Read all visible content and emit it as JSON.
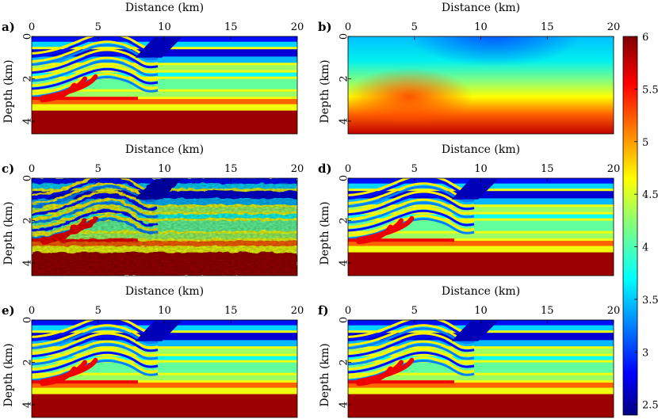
{
  "chart_data": {
    "type": "heatmap",
    "colormap": "jet",
    "xlabel": "Distance (km)",
    "ylabel": "Depth (km)",
    "x_ticks": [
      0,
      5,
      10,
      15,
      20
    ],
    "y_ticks": [
      0,
      2,
      4
    ],
    "xlim": [
      0,
      20
    ],
    "ylim": [
      0,
      4.6
    ],
    "colorbar": {
      "ticks": [
        2.5,
        3,
        3.5,
        4,
        4.5,
        5,
        5.5,
        6
      ],
      "tick_labels": [
        "2.5",
        "3",
        "3.5",
        "4",
        "4.5",
        "5",
        "5.5",
        "6"
      ],
      "range": [
        2.4,
        6
      ]
    },
    "panels": [
      {
        "label": "a)",
        "kind": "true-model"
      },
      {
        "label": "b)",
        "kind": "smooth-initial"
      },
      {
        "label": "c)",
        "kind": "noisy-inversion"
      },
      {
        "label": "d)",
        "kind": "inversion"
      },
      {
        "label": "e)",
        "kind": "inversion"
      },
      {
        "label": "f)",
        "kind": "inversion"
      }
    ]
  }
}
